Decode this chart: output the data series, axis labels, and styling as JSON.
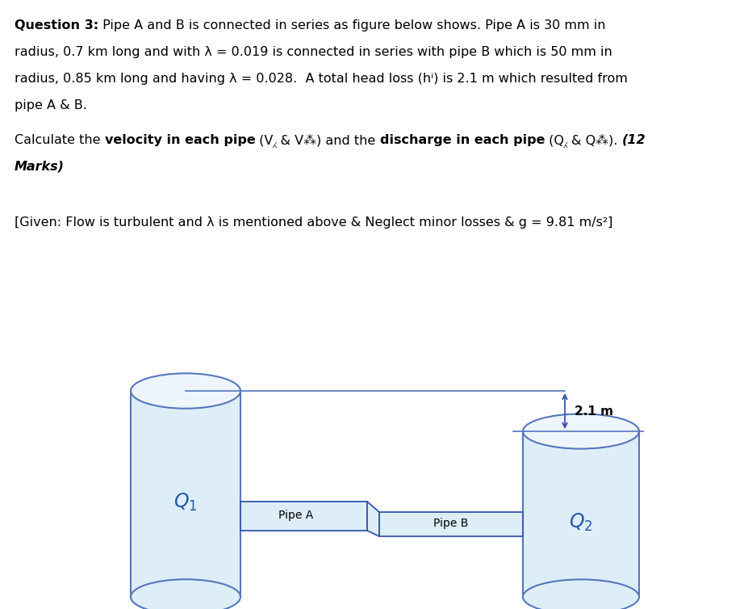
{
  "bg_color": "#ffffff",
  "text_color": "#000000",
  "label_color": "#2255aa",
  "cylinder_fill": "#ddeef8",
  "cylinder_edge": "#5577bb",
  "pipe_fill": "#ddeef8",
  "pipe_edge": "#3355aa",
  "arrow_color": "#3355aa",
  "head_loss_label": "2.1 m",
  "pipe_a_label": "Pipe A",
  "pipe_b_label": "Pipe B",
  "q1_label": "Q",
  "q2_label": "Q",
  "given_text": "[Given: Flow is turbulent and λ is mentioned above & Neglect minor losses & g = 9.81 m/s²]",
  "line1_bold": "Question 3:",
  "line1_rest": " Pipe A and B is connected in series as figure below shows. Pipe A is 30 mm in",
  "line2": "radius, 0.7 km long and with λ = 0.019 is connected in series with pipe B which is 50 mm in",
  "line3": "radius, 0.85 km long and having λ = 0.028.  A total head loss (hⁱ) is 2.1 m which resulted from",
  "line4": "pipe A & B.",
  "calc_pre": "Calculate the ",
  "calc_bold1": "velocity in each pipe",
  "calc_mid": " (V⁁ & V⁂) and the ",
  "calc_bold2": "discharge in each pipe",
  "calc_post": " (Q⁁ & Q⁂). ",
  "calc_italic": "(12",
  "marks_italic": "Marks)"
}
